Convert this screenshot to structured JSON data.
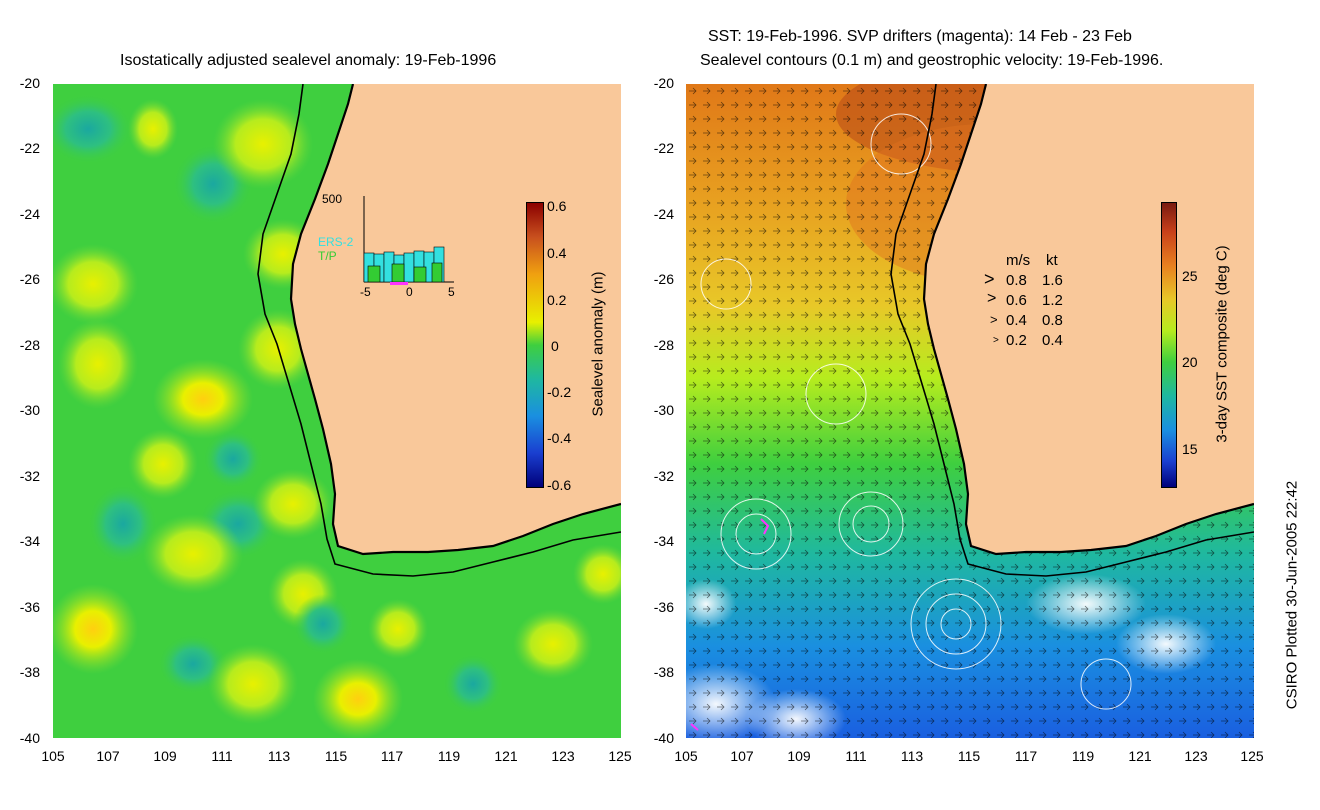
{
  "left_panel": {
    "title": "Isostatically adjusted sealevel anomaly: 19-Feb-1996",
    "colorbar": {
      "label": "Sealevel anomaly (m)",
      "ticks": [
        "0.6",
        "0.4",
        "0.2",
        "0",
        "-0.2",
        "-0.4",
        "-0.6"
      ],
      "range": [
        -0.6,
        0.6
      ]
    },
    "inset": {
      "y_max_label": "500",
      "legend": [
        "ERS-2",
        "T/P"
      ],
      "x_ticks": [
        "-5",
        "0",
        "5"
      ],
      "colors": {
        "ers2": "#33e0e0",
        "tp": "#33cc33",
        "magenta": "#ff33ff"
      }
    }
  },
  "right_panel": {
    "title_line1": "SST: 19-Feb-1996. SVP drifters (magenta): 14 Feb - 23 Feb",
    "title_line2": "Sealevel contours (0.1 m) and geostrophic velocity: 19-Feb-1996.",
    "colorbar": {
      "label": "3-day SST composite (deg C)",
      "ticks": [
        "25",
        "20",
        "15"
      ],
      "range": [
        13,
        29
      ]
    },
    "velocity_key": {
      "header_ms": "m/s",
      "header_kt": "kt",
      "rows": [
        {
          "ms": "0.8",
          "kt": "1.6"
        },
        {
          "ms": "0.6",
          "kt": "1.2"
        },
        {
          "ms": "0.4",
          "kt": "0.8"
        },
        {
          "ms": "0.2",
          "kt": "0.4"
        }
      ]
    }
  },
  "axes": {
    "y_ticks": [
      "-20",
      "-22",
      "-24",
      "-26",
      "-28",
      "-30",
      "-32",
      "-34",
      "-36",
      "-38",
      "-40"
    ],
    "x_ticks": [
      "105",
      "107",
      "109",
      "111",
      "113",
      "115",
      "117",
      "119",
      "121",
      "123",
      "125"
    ],
    "lat_range": [
      -40,
      -20
    ],
    "lon_range": [
      105,
      125
    ]
  },
  "footer": "CSIRO Plotted 30-Jun-2005 22:42",
  "colors": {
    "land": "#f9c89a",
    "ocean_base": "#3fcf3f",
    "coast": "#000000"
  }
}
